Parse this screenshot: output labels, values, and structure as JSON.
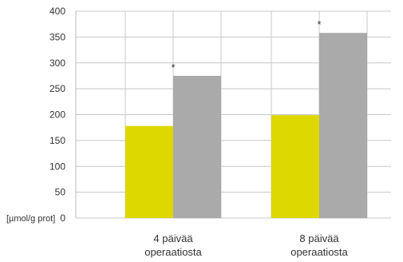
{
  "chart_data": {
    "type": "bar",
    "title": "",
    "xlabel": "",
    "ylabel": "[µmol/g prot]",
    "ylim": [
      0,
      400
    ],
    "yticks": [
      0,
      50,
      100,
      150,
      200,
      250,
      300,
      350,
      400
    ],
    "grid": true,
    "categories": [
      [
        "4 päivää",
        "operaatiosta"
      ],
      [
        "8 päivää",
        "operaatiosta"
      ]
    ],
    "series": [
      {
        "color": "#dcd800",
        "values": [
          178,
          199
        ]
      },
      {
        "color": "#aaaaaa",
        "values": [
          275,
          358
        ]
      }
    ],
    "annotations": [
      {
        "category_index": 0,
        "series_index": 1,
        "text": "*"
      },
      {
        "category_index": 1,
        "series_index": 1,
        "text": "*"
      }
    ]
  }
}
